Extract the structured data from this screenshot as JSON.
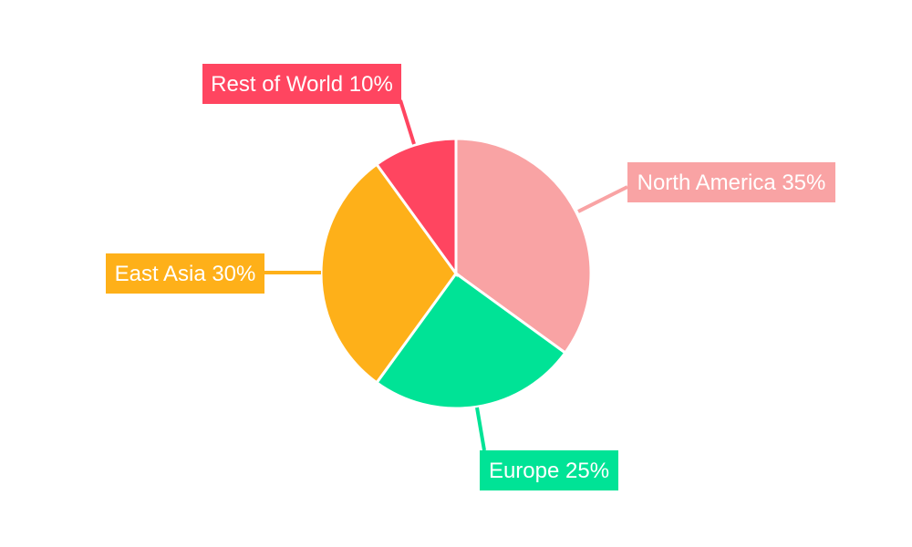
{
  "chart_data": {
    "type": "pie",
    "title": "",
    "start_angle": "12 o'clock, clockwise",
    "slices": [
      {
        "label": "North America",
        "value": 35,
        "text": "North America 35%",
        "color": "#f9a3a4"
      },
      {
        "label": "Europe",
        "value": 25,
        "text": "Europe 25%",
        "color": "#00e396"
      },
      {
        "label": "East Asia",
        "value": 30,
        "text": "East Asia 30%",
        "color": "#feb019"
      },
      {
        "label": "Rest of World",
        "value": 10,
        "text": "Rest of World 10%",
        "color": "#ff4560"
      }
    ],
    "legend": "none",
    "data_labels": "outside with leader lines"
  }
}
